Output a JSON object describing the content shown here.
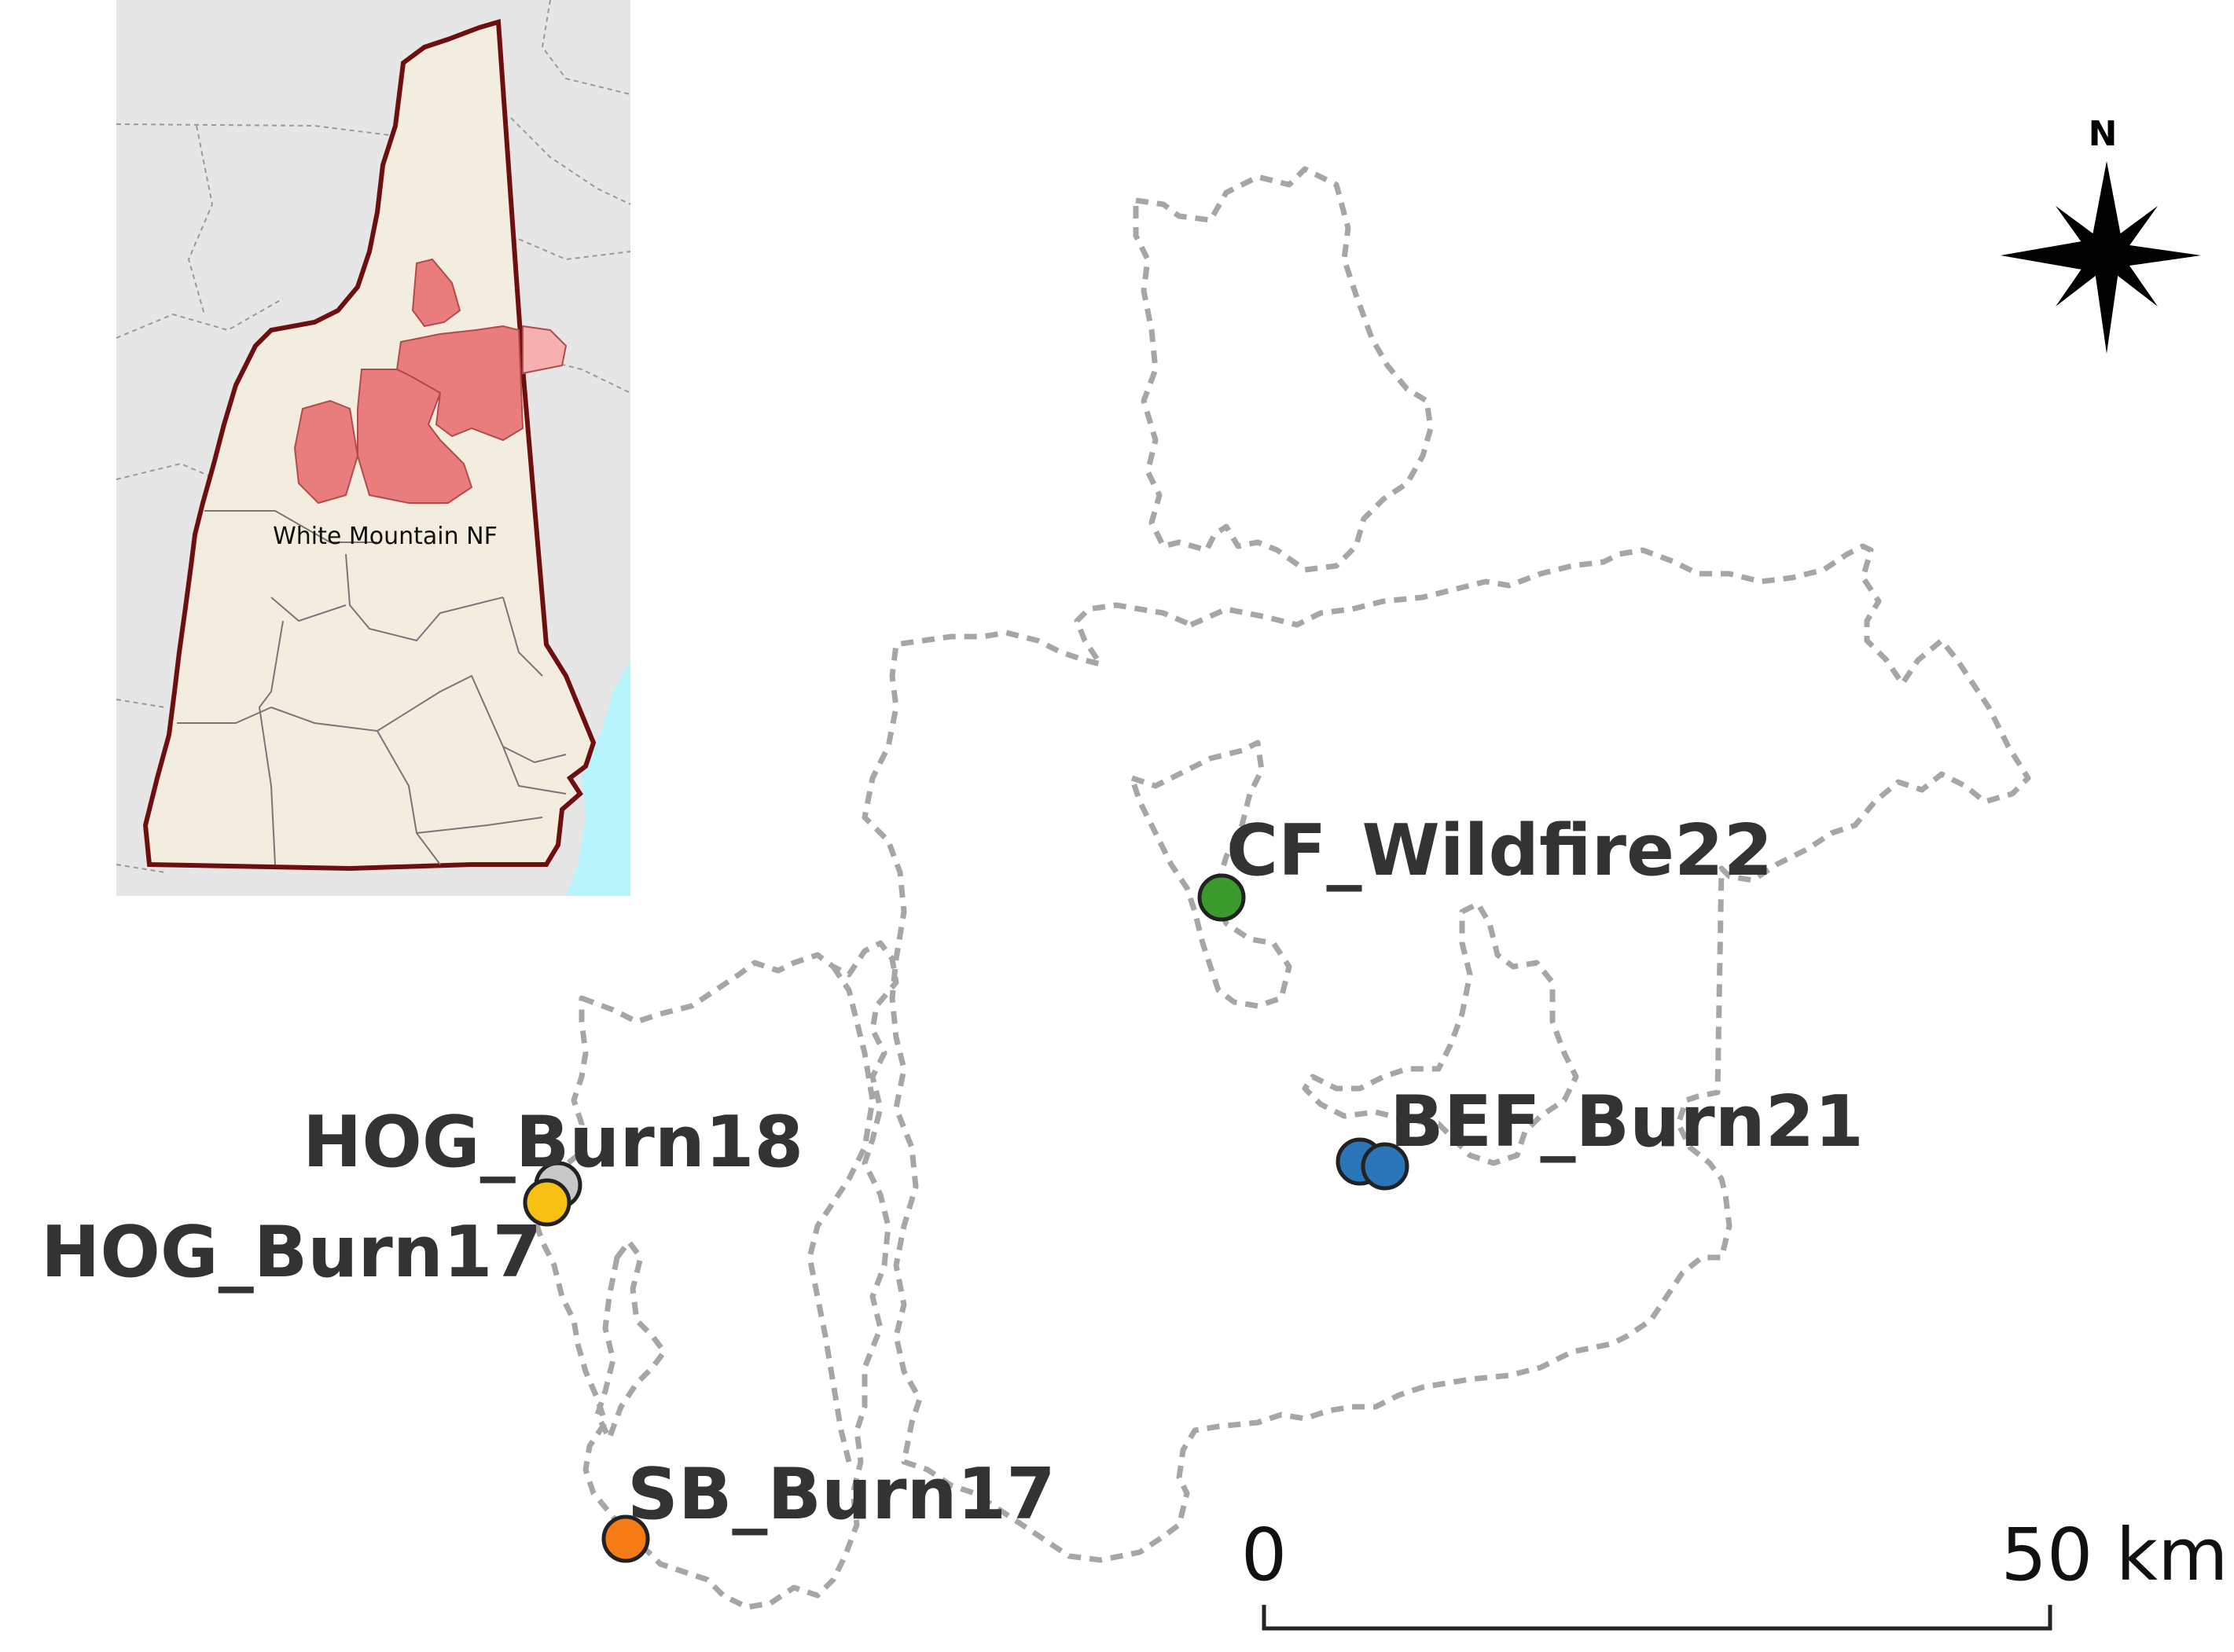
{
  "sites": [
    {
      "id": "cf-wildfire22",
      "label": "CF_Wildfire22",
      "color": "#3a9a2c"
    },
    {
      "id": "bef-burn21",
      "label": "BEF_Burn21",
      "color": "#2a74b8"
    },
    {
      "id": "hog-burn18",
      "label": "HOG_Burn18",
      "color": "#c8c8c8"
    },
    {
      "id": "hog-burn17",
      "label": "HOG_Burn17",
      "color": "#f7c012"
    },
    {
      "id": "sb-burn17",
      "label": "SB_Burn17",
      "color": "#f57c14"
    }
  ],
  "scale_bar": {
    "start_label": "0",
    "end_label": "50 km"
  },
  "north_arrow": {
    "label": "N"
  },
  "inset": {
    "label": "White Mountain NF",
    "colors": {
      "state_fill": "#f3eddf",
      "state_border": "#6e0f0f",
      "forest_fill": "#e97c7c",
      "ocean": "#b8f4fb",
      "background": "#e6e6e6"
    }
  },
  "colors": {
    "boundary": "#a6a6a6",
    "label_text": "#333333"
  }
}
